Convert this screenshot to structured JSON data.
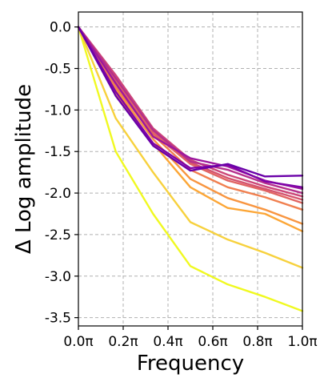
{
  "chart_data": {
    "type": "line",
    "title": "",
    "xlabel": "Frequency",
    "ylabel": "Δ Log amplitude",
    "xlim": [
      0.0,
      1.0
    ],
    "ylim": [
      -3.6,
      0.18
    ],
    "grid": true,
    "legend": "none",
    "x_ticks": [
      0.0,
      0.2,
      0.4,
      0.6,
      0.8,
      1.0
    ],
    "x_tick_labels": [
      "0.0π",
      "0.2π",
      "0.4π",
      "0.6π",
      "0.8π",
      "1.0π"
    ],
    "y_ticks": [
      0.0,
      -0.5,
      -1.0,
      -1.5,
      -2.0,
      -2.5,
      -3.0,
      -3.5
    ],
    "y_tick_labels": [
      "0.0",
      "-0.5",
      "-1.0",
      "-1.5",
      "-2.0",
      "-2.5",
      "-3.0",
      "-3.5"
    ],
    "x": [
      0.0,
      0.1667,
      0.3333,
      0.5,
      0.6667,
      0.8333,
      1.0
    ],
    "series": [
      {
        "color": "#f0f921",
        "values": [
          0.0,
          -1.5,
          -2.25,
          -2.88,
          -3.1,
          -3.25,
          -3.42
        ]
      },
      {
        "color": "#f7d13d",
        "values": [
          0.0,
          -1.1,
          -1.75,
          -2.35,
          -2.56,
          -2.72,
          -2.9
        ]
      },
      {
        "color": "#fca636",
        "values": [
          0.0,
          -0.82,
          -1.4,
          -1.93,
          -2.18,
          -2.25,
          -2.46
        ]
      },
      {
        "color": "#f89540",
        "values": [
          0.0,
          -0.75,
          -1.35,
          -1.83,
          -2.06,
          -2.2,
          -2.37
        ]
      },
      {
        "color": "#f07f4f",
        "values": [
          0.0,
          -0.72,
          -1.3,
          -1.72,
          -1.93,
          -2.05,
          -2.2
        ]
      },
      {
        "color": "#e16462",
        "values": [
          0.0,
          -0.65,
          -1.28,
          -1.65,
          -1.85,
          -1.97,
          -2.12
        ]
      },
      {
        "color": "#d5546e",
        "values": [
          0.0,
          -0.6,
          -1.25,
          -1.63,
          -1.82,
          -1.95,
          -2.08
        ]
      },
      {
        "color": "#cc4778",
        "values": [
          0.0,
          -0.58,
          -1.22,
          -1.6,
          -1.78,
          -1.92,
          -2.04
        ]
      },
      {
        "color": "#b52f8c",
        "values": [
          0.0,
          -0.62,
          -1.24,
          -1.62,
          -1.72,
          -1.88,
          -2.0
        ]
      },
      {
        "color": "#9c179e",
        "values": [
          0.0,
          -0.68,
          -1.32,
          -1.58,
          -1.68,
          -1.85,
          -1.95
        ]
      },
      {
        "color": "#7e03a8",
        "values": [
          0.0,
          -0.78,
          -1.4,
          -1.7,
          -1.66,
          -1.86,
          -1.93
        ]
      },
      {
        "color": "#6a00a8",
        "values": [
          0.0,
          -0.83,
          -1.43,
          -1.73,
          -1.65,
          -1.8,
          -1.79
        ]
      }
    ]
  }
}
